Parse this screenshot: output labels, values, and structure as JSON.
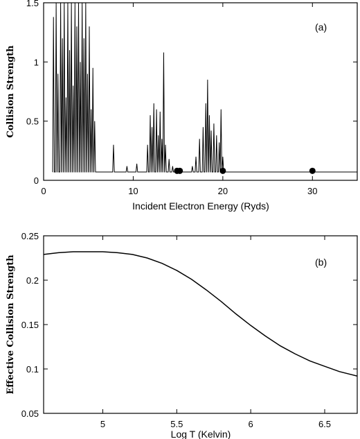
{
  "chart_data": [
    {
      "type": "line",
      "panel_label": "(a)",
      "xlabel": "Incident Electron Energy (Ryds)",
      "ylabel": "Collision Strength",
      "xlim": [
        0,
        35
      ],
      "ylim": [
        0,
        1.5
      ],
      "xticks": [
        0,
        10,
        20,
        30
      ],
      "yticks": [
        0,
        0.5,
        1,
        1.5
      ],
      "xtick_labels": [
        "0",
        "10",
        "20",
        "30"
      ],
      "ytick_labels": [
        "0",
        "0.5",
        "1",
        "1.5"
      ],
      "grid": false,
      "baseline": 0.07,
      "resonance_peaks": [
        [
          1.1,
          1.38
        ],
        [
          1.4,
          1.5
        ],
        [
          1.6,
          0.9
        ],
        [
          1.9,
          1.5
        ],
        [
          2.1,
          1.2
        ],
        [
          2.3,
          1.5
        ],
        [
          2.5,
          0.7
        ],
        [
          2.7,
          1.5
        ],
        [
          2.9,
          1.1
        ],
        [
          3.1,
          1.5
        ],
        [
          3.3,
          0.8
        ],
        [
          3.5,
          1.5
        ],
        [
          3.7,
          1.3
        ],
        [
          3.9,
          1.5
        ],
        [
          4.1,
          1.0
        ],
        [
          4.3,
          1.5
        ],
        [
          4.5,
          1.2
        ],
        [
          4.7,
          1.5
        ],
        [
          4.9,
          0.9
        ],
        [
          5.1,
          1.3
        ],
        [
          5.3,
          0.6
        ],
        [
          5.5,
          0.95
        ],
        [
          5.7,
          0.5
        ],
        [
          7.8,
          0.3
        ],
        [
          9.3,
          0.12
        ],
        [
          10.4,
          0.14
        ],
        [
          11.6,
          0.3
        ],
        [
          11.9,
          0.55
        ],
        [
          12.1,
          0.45
        ],
        [
          12.3,
          0.65
        ],
        [
          12.6,
          0.6
        ],
        [
          12.8,
          0.38
        ],
        [
          13.0,
          0.58
        ],
        [
          13.2,
          0.35
        ],
        [
          13.4,
          1.08
        ],
        [
          13.6,
          0.3
        ],
        [
          14.0,
          0.18
        ],
        [
          14.4,
          0.12
        ],
        [
          16.6,
          0.12
        ],
        [
          17.0,
          0.2
        ],
        [
          17.4,
          0.35
        ],
        [
          17.8,
          0.45
        ],
        [
          18.1,
          0.65
        ],
        [
          18.3,
          0.85
        ],
        [
          18.5,
          0.55
        ],
        [
          18.7,
          0.42
        ],
        [
          19.0,
          0.48
        ],
        [
          19.3,
          0.38
        ],
        [
          19.6,
          0.32
        ],
        [
          19.8,
          0.6
        ],
        [
          20.0,
          0.2
        ]
      ],
      "markers": [
        [
          14.9,
          0.08
        ],
        [
          15.2,
          0.08
        ],
        [
          20.0,
          0.08
        ],
        [
          30.0,
          0.08
        ]
      ]
    },
    {
      "type": "line",
      "panel_label": "(b)",
      "xlabel": "Log T (Kelvin)",
      "ylabel": "Effective Collision Strength",
      "xlim": [
        4.6,
        6.72
      ],
      "ylim": [
        0.05,
        0.25
      ],
      "xticks": [
        5,
        5.5,
        6,
        6.5
      ],
      "yticks": [
        0.05,
        0.1,
        0.15,
        0.2,
        0.25
      ],
      "xtick_labels": [
        "5",
        "5.5",
        "6",
        "6.5"
      ],
      "ytick_labels": [
        "0.05",
        "0.1",
        "0.15",
        "0.2",
        "0.25"
      ],
      "grid": false,
      "x": [
        4.6,
        4.7,
        4.8,
        4.9,
        5.0,
        5.1,
        5.2,
        5.3,
        5.4,
        5.5,
        5.6,
        5.7,
        5.8,
        5.9,
        6.0,
        6.1,
        6.2,
        6.3,
        6.4,
        6.5,
        6.6,
        6.72
      ],
      "y": [
        0.229,
        0.231,
        0.232,
        0.232,
        0.232,
        0.231,
        0.229,
        0.225,
        0.219,
        0.211,
        0.201,
        0.189,
        0.176,
        0.162,
        0.149,
        0.137,
        0.126,
        0.117,
        0.109,
        0.103,
        0.097,
        0.092
      ]
    }
  ]
}
